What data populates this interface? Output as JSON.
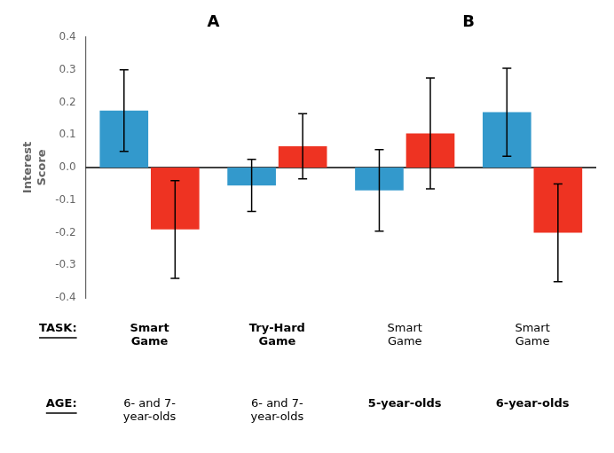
{
  "chart_data": {
    "type": "bar",
    "ylabel": "Interest\nScore",
    "categories": [
      null,
      null,
      null,
      null
    ],
    "series": [
      {
        "color": "#3399CC",
        "values": [
          0.175,
          -0.055,
          -0.07,
          0.17
        ],
        "errors": [
          0.125,
          0.08,
          0.125,
          0.135
        ]
      },
      {
        "color": "#EE3322",
        "values": [
          -0.19,
          0.065,
          0.105,
          -0.2
        ],
        "errors": [
          0.15,
          0.1,
          0.17,
          0.15
        ]
      }
    ],
    "ylim": [
      -0.4,
      0.4
    ],
    "yticks": [
      -0.4,
      -0.3,
      -0.2,
      -0.1,
      {
        "value": 0.0,
        "label": "0.0"
      },
      0.1,
      0.2,
      0.3,
      0.4
    ],
    "grid": false,
    "tick_labels": "y",
    "hline": 0,
    "panel_labels": [
      "A",
      "B"
    ],
    "rows": [
      {
        "header": "TASK:",
        "labels": [
          "Smart\nGame",
          "Try-Hard\nGame",
          "Smart\nGame",
          "Smart\nGame"
        ],
        "bold": [
          true,
          true,
          false,
          false
        ]
      },
      {
        "header": "AGE:",
        "labels": [
          "6- and 7-\nyear-olds",
          "6- and 7-\nyear-olds",
          "5-year-olds",
          "6-year-olds"
        ],
        "bold": [
          false,
          false,
          true,
          true
        ]
      }
    ]
  }
}
